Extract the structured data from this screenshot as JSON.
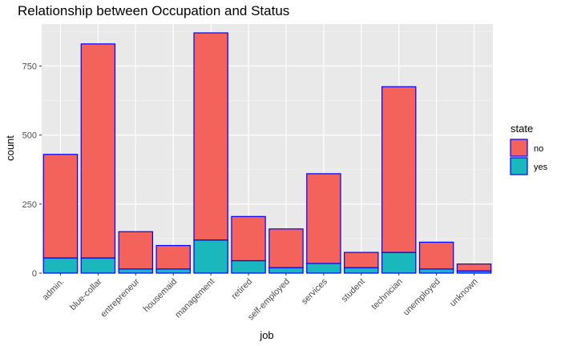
{
  "chart_data": {
    "type": "bar",
    "stacked": true,
    "title": "Relationship between Occupation and Status",
    "xlabel": "job",
    "ylabel": "count",
    "categories": [
      "admin.",
      "blue-collar",
      "entrepreneur",
      "housemaid",
      "management",
      "retired",
      "self-employed",
      "services",
      "student",
      "technician",
      "unemployed",
      "unknown"
    ],
    "series": [
      {
        "name": "yes",
        "values": [
          55,
          55,
          15,
          15,
          120,
          45,
          20,
          35,
          20,
          75,
          15,
          8
        ],
        "color": "#1ab7bd"
      },
      {
        "name": "no",
        "values": [
          375,
          775,
          135,
          85,
          750,
          160,
          140,
          325,
          55,
          600,
          97,
          25
        ],
        "color": "#f4625c"
      }
    ],
    "ylim": [
      0,
      902
    ],
    "yticks": [
      0,
      250,
      500,
      750
    ],
    "grid": true,
    "bar_outline_color": "#0000ff",
    "panel_background": "#e9e9e9",
    "legend": {
      "title": "state",
      "position": "right",
      "entries": [
        {
          "label": "no",
          "color": "#f4625c"
        },
        {
          "label": "yes",
          "color": "#1ab7bd"
        }
      ]
    }
  }
}
